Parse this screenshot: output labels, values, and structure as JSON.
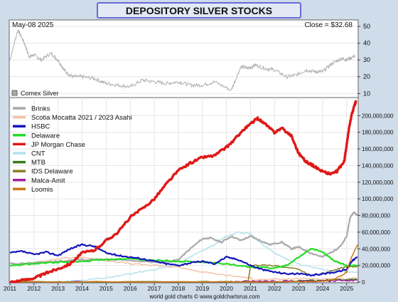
{
  "title": "DEPOSITORY SILVER STOCKS",
  "footer": "world gold charts © www.goldchartsrus.com",
  "colors": {
    "frame_bg": "#cfdcea",
    "title_bg": "#e2e9f4",
    "title_border": "#6a6ad8",
    "title_text": "#1a1a7a",
    "plot_bg": "#ffffff"
  },
  "chart_data": [
    {
      "type": "line",
      "date_label": "May-08  2025",
      "close_label": "Close = $32.68",
      "legend": [
        {
          "name": "Comex Silver",
          "color": "#aaaaaa"
        }
      ],
      "ylim": [
        8,
        53
      ],
      "y_ticks": [
        "50",
        "40",
        "30",
        "20",
        "10"
      ],
      "grid": true,
      "series": [
        {
          "name": "Comex Silver",
          "color": "#b0b0b0",
          "x": [
            2011.0,
            2011.33,
            2011.6,
            2011.8,
            2012.0,
            2012.3,
            2012.7,
            2013.0,
            2013.3,
            2013.6,
            2014.0,
            2014.5,
            2015.0,
            2015.5,
            2016.0,
            2016.5,
            2017.0,
            2017.5,
            2018.0,
            2018.5,
            2019.0,
            2019.5,
            2020.2,
            2020.6,
            2020.9,
            2021.2,
            2021.6,
            2022.0,
            2022.5,
            2022.9,
            2023.3,
            2023.7,
            2024.0,
            2024.4,
            2024.8,
            2025.0,
            2025.35
          ],
          "values": [
            30,
            48,
            40,
            32,
            33,
            30,
            34,
            30,
            23,
            20,
            20,
            19,
            16,
            15,
            14,
            18,
            17,
            16,
            17,
            15,
            15,
            17,
            12,
            26,
            25,
            27,
            25,
            24,
            20,
            21,
            24,
            23,
            23,
            28,
            31,
            30,
            32.68
          ]
        }
      ]
    },
    {
      "type": "line",
      "ylim": [
        0,
        220000000
      ],
      "y_ticks": [
        "200,000,000",
        "180,000,000",
        "160,000,000",
        "140,000,000",
        "120,000,000",
        "100,000,000",
        "80,000,000",
        "60,000,000",
        "40,000,000",
        "20,000,000",
        "0"
      ],
      "x_ticks": [
        "2011",
        "2012",
        "2013",
        "2014",
        "2015",
        "2016",
        "2017",
        "2018",
        "2019",
        "2020",
        "2021",
        "2022",
        "2023",
        "2024",
        "2025"
      ],
      "xlim": [
        2011.0,
        2025.45
      ],
      "grid": true,
      "series": [
        {
          "name": "Brinks",
          "color": "#a9a9a9",
          "x": [
            2011.0,
            2012.0,
            2013.0,
            2014.0,
            2015.0,
            2016.0,
            2017.0,
            2017.5,
            2018.0,
            2018.5,
            2019.0,
            2019.3,
            2019.8,
            2020.2,
            2020.6,
            2021.0,
            2021.4,
            2021.8,
            2022.3,
            2022.7,
            2023.0,
            2023.5,
            2024.0,
            2024.5,
            2024.8,
            2025.0,
            2025.15,
            2025.3,
            2025.45
          ],
          "values": [
            22000000,
            23000000,
            25000000,
            27000000,
            27000000,
            26000000,
            24000000,
            24000000,
            27000000,
            40000000,
            52000000,
            53000000,
            48000000,
            55000000,
            50000000,
            55000000,
            50000000,
            45000000,
            48000000,
            40000000,
            42000000,
            35000000,
            30000000,
            38000000,
            45000000,
            55000000,
            78000000,
            84000000,
            80000000
          ]
        },
        {
          "name": "Scotia Mocatta 2021 / 2023 Asahi",
          "color": "#f4c0a8",
          "x": [
            2011.0,
            2012.0,
            2013.0,
            2014.0,
            2015.0,
            2016.0,
            2017.0,
            2018.0,
            2019.0,
            2020.0,
            2021.0,
            2021.1,
            2022.0,
            2023.0,
            2024.0,
            2025.0,
            2025.45
          ],
          "values": [
            20000000,
            23000000,
            28000000,
            30000000,
            26000000,
            22000000,
            20000000,
            18000000,
            12000000,
            8000000,
            5000000,
            3000000,
            3000000,
            4000000,
            4000000,
            4000000,
            5000000
          ]
        },
        {
          "name": "HSBC",
          "color": "#1515bb",
          "x": [
            2011.0,
            2011.5,
            2012.0,
            2012.5,
            2013.0,
            2013.5,
            2014.0,
            2014.5,
            2015.0,
            2015.5,
            2016.0,
            2016.5,
            2017.0,
            2017.5,
            2018.0,
            2018.5,
            2019.0,
            2019.5,
            2020.0,
            2020.5,
            2021.0,
            2021.5,
            2022.0,
            2022.5,
            2023.0,
            2023.5,
            2024.0,
            2024.5,
            2025.0,
            2025.2,
            2025.45
          ],
          "values": [
            35000000,
            37000000,
            33000000,
            36000000,
            32000000,
            40000000,
            45000000,
            43000000,
            35000000,
            32000000,
            30000000,
            28000000,
            25000000,
            22000000,
            20000000,
            23000000,
            25000000,
            22000000,
            30000000,
            27000000,
            20000000,
            15000000,
            12000000,
            10000000,
            10000000,
            8000000,
            10000000,
            12000000,
            15000000,
            25000000,
            30000000
          ]
        },
        {
          "name": "Delaware",
          "color": "#22dd22",
          "x": [
            2011.0,
            2012.0,
            2013.0,
            2014.0,
            2015.0,
            2016.0,
            2017.0,
            2018.0,
            2019.0,
            2020.0,
            2021.0,
            2022.0,
            2022.5,
            2023.0,
            2023.5,
            2024.0,
            2024.5,
            2025.0,
            2025.45
          ],
          "values": [
            20000000,
            22000000,
            24000000,
            25000000,
            27000000,
            28000000,
            26000000,
            25000000,
            24000000,
            22000000,
            18000000,
            17000000,
            20000000,
            30000000,
            40000000,
            36000000,
            25000000,
            20000000,
            20000000
          ]
        },
        {
          "name": "JP Morgan Chase",
          "color": "#e01818",
          "x": [
            2011.0,
            2011.5,
            2012.0,
            2012.3,
            2012.6,
            2013.0,
            2013.5,
            2014.0,
            2014.5,
            2015.0,
            2015.5,
            2016.0,
            2016.5,
            2017.0,
            2017.5,
            2018.0,
            2018.5,
            2019.0,
            2019.5,
            2020.0,
            2020.3,
            2020.6,
            2021.0,
            2021.3,
            2021.6,
            2022.0,
            2022.3,
            2022.7,
            2023.0,
            2023.3,
            2023.6,
            2024.0,
            2024.3,
            2024.6,
            2024.9,
            2025.0,
            2025.1,
            2025.2,
            2025.3,
            2025.4
          ],
          "values": [
            0,
            2000000,
            5000000,
            8000000,
            12000000,
            16000000,
            22000000,
            35000000,
            38000000,
            50000000,
            60000000,
            78000000,
            88000000,
            100000000,
            118000000,
            134000000,
            143000000,
            150000000,
            152000000,
            162000000,
            170000000,
            180000000,
            190000000,
            197000000,
            190000000,
            180000000,
            185000000,
            176000000,
            155000000,
            145000000,
            140000000,
            133000000,
            130000000,
            133000000,
            145000000,
            165000000,
            185000000,
            200000000,
            210000000,
            218000000
          ]
        },
        {
          "name": "CNT",
          "color": "#b4e2ee",
          "x": [
            2011.0,
            2012.0,
            2013.0,
            2014.0,
            2015.0,
            2016.0,
            2017.0,
            2018.0,
            2018.5,
            2019.0,
            2019.5,
            2020.0,
            2020.5,
            2021.0,
            2021.5,
            2022.0,
            2022.5,
            2023.0,
            2024.0,
            2025.0,
            2025.45
          ],
          "values": [
            0,
            0,
            0,
            2000000,
            5000000,
            10000000,
            15000000,
            22000000,
            30000000,
            38000000,
            45000000,
            55000000,
            60000000,
            58000000,
            45000000,
            35000000,
            28000000,
            22000000,
            15000000,
            12000000,
            12000000
          ]
        },
        {
          "name": "MTB",
          "color": "#3a7a1a",
          "x": [
            2011.0,
            2015.0,
            2020.0,
            2021.0,
            2022.0,
            2023.0,
            2024.0,
            2025.0,
            2025.45
          ],
          "values": [
            0,
            0,
            0,
            0,
            0,
            1000000,
            2000000,
            3000000,
            3000000
          ]
        },
        {
          "name": "IDS Delaware",
          "color": "#8a7f28",
          "x": [
            2011.0,
            2018.0,
            2020.9,
            2021.0,
            2022.0,
            2023.0,
            2023.5,
            2024.0,
            2024.5,
            2025.0,
            2025.45
          ],
          "values": [
            0,
            0,
            0,
            20000000,
            20000000,
            15000000,
            8000000,
            10000000,
            15000000,
            18000000,
            19000000
          ]
        },
        {
          "name": "Malca-Amit",
          "color": "#a020a0",
          "x": [
            2011.0,
            2015.0,
            2020.0,
            2021.0,
            2022.0,
            2023.0,
            2024.0,
            2025.0,
            2025.45
          ],
          "values": [
            0,
            0,
            0,
            1000000,
            1000000,
            1000000,
            1000000,
            2000000,
            2000000
          ]
        },
        {
          "name": "Loomis",
          "color": "#cc7a10",
          "x": [
            2011.0,
            2020.0,
            2023.0,
            2024.0,
            2024.5,
            2025.0,
            2025.2,
            2025.45
          ],
          "values": [
            0,
            0,
            0,
            1000000,
            3000000,
            12000000,
            30000000,
            45000000
          ]
        }
      ]
    }
  ]
}
